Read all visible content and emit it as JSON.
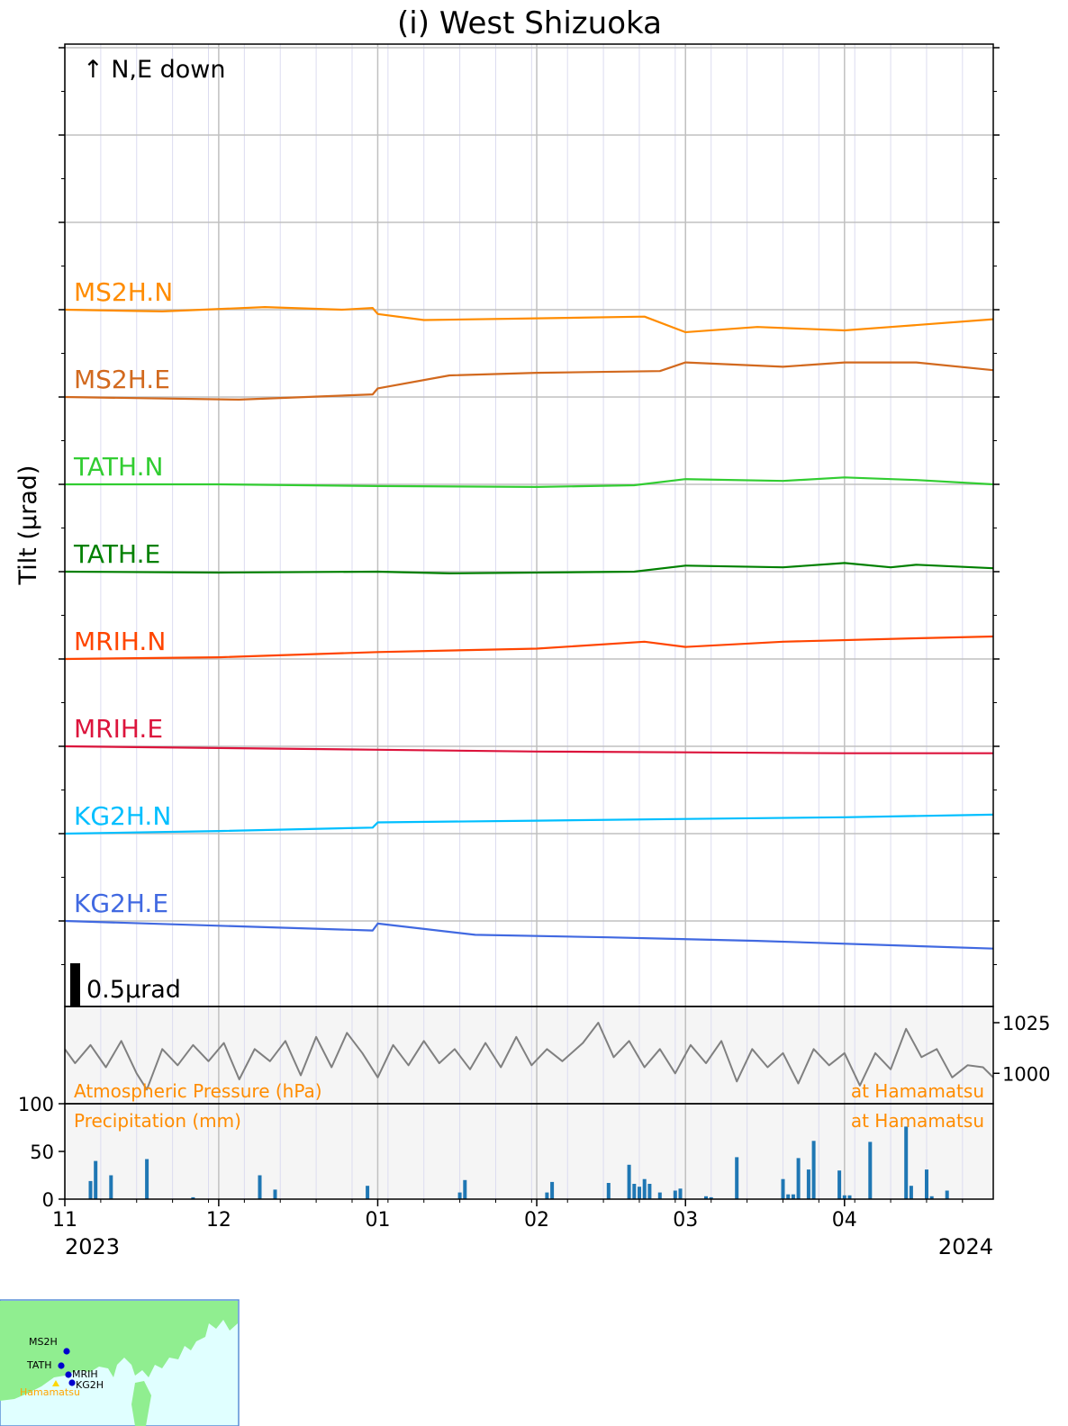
{
  "chart_data": {
    "type": "line",
    "title": "(i) West Shizuoka",
    "ylabel": "Tilt (μrad)",
    "direction_note": "↑ N,E down",
    "scale_bar_label": "0.5μrad",
    "scale_bar_value": 0.5,
    "x_axis": {
      "range": [
        "2023-11-01",
        "2024-04-30"
      ],
      "month_ticks": [
        {
          "date": "2023-11-01",
          "label": "11"
        },
        {
          "date": "2023-12-01",
          "label": "12"
        },
        {
          "date": "2024-01-01",
          "label": "01"
        },
        {
          "date": "2024-02-01",
          "label": "02"
        },
        {
          "date": "2024-03-01",
          "label": "03"
        },
        {
          "date": "2024-04-01",
          "label": "04"
        }
      ],
      "year_left": "2023",
      "year_right": "2024"
    },
    "series": [
      {
        "name": "MS2H.N",
        "color": "#ff8c00",
        "points": [
          [
            "2023-11-01",
            0
          ],
          [
            "2023-11-20",
            -0.02
          ],
          [
            "2023-12-10",
            0.03
          ],
          [
            "2023-12-25",
            0
          ],
          [
            "2023-12-31",
            0.02
          ],
          [
            "2024-01-01",
            -0.05
          ],
          [
            "2024-01-10",
            -0.12
          ],
          [
            "2024-02-01",
            -0.1
          ],
          [
            "2024-02-22",
            -0.08
          ],
          [
            "2024-03-01",
            -0.26
          ],
          [
            "2024-03-15",
            -0.2
          ],
          [
            "2024-04-01",
            -0.24
          ],
          [
            "2024-04-10",
            -0.2
          ],
          [
            "2024-04-30",
            -0.11
          ]
        ]
      },
      {
        "name": "MS2H.E",
        "color": "#d2691e",
        "points": [
          [
            "2023-11-01",
            0
          ],
          [
            "2023-12-05",
            -0.03
          ],
          [
            "2023-12-31",
            0.03
          ],
          [
            "2024-01-01",
            0.1
          ],
          [
            "2024-01-15",
            0.25
          ],
          [
            "2024-02-01",
            0.28
          ],
          [
            "2024-02-25",
            0.3
          ],
          [
            "2024-03-01",
            0.4
          ],
          [
            "2024-03-20",
            0.35
          ],
          [
            "2024-04-01",
            0.4
          ],
          [
            "2024-04-15",
            0.4
          ],
          [
            "2024-04-30",
            0.31
          ]
        ]
      },
      {
        "name": "TATH.N",
        "color": "#32cd32",
        "points": [
          [
            "2023-11-01",
            0
          ],
          [
            "2023-12-01",
            0
          ],
          [
            "2024-01-01",
            -0.02
          ],
          [
            "2024-02-01",
            -0.03
          ],
          [
            "2024-02-20",
            -0.01
          ],
          [
            "2024-03-01",
            0.06
          ],
          [
            "2024-03-20",
            0.04
          ],
          [
            "2024-04-01",
            0.08
          ],
          [
            "2024-04-15",
            0.05
          ],
          [
            "2024-04-30",
            0
          ]
        ]
      },
      {
        "name": "TATH.E",
        "color": "#008000",
        "points": [
          [
            "2023-11-01",
            0
          ],
          [
            "2023-12-01",
            -0.01
          ],
          [
            "2024-01-01",
            0
          ],
          [
            "2024-01-15",
            -0.02
          ],
          [
            "2024-02-20",
            0
          ],
          [
            "2024-03-01",
            0.07
          ],
          [
            "2024-03-20",
            0.05
          ],
          [
            "2024-04-01",
            0.1
          ],
          [
            "2024-04-10",
            0.05
          ],
          [
            "2024-04-15",
            0.08
          ],
          [
            "2024-04-30",
            0.04
          ]
        ]
      },
      {
        "name": "MRIH.N",
        "color": "#ff4500",
        "points": [
          [
            "2023-11-01",
            0
          ],
          [
            "2023-12-01",
            0.02
          ],
          [
            "2024-01-01",
            0.08
          ],
          [
            "2024-02-01",
            0.12
          ],
          [
            "2024-02-22",
            0.2
          ],
          [
            "2024-03-01",
            0.14
          ],
          [
            "2024-03-20",
            0.2
          ],
          [
            "2024-04-15",
            0.24
          ],
          [
            "2024-04-30",
            0.26
          ]
        ]
      },
      {
        "name": "MRIH.E",
        "color": "#dc143c",
        "points": [
          [
            "2023-11-01",
            0
          ],
          [
            "2023-12-01",
            -0.02
          ],
          [
            "2024-01-01",
            -0.04
          ],
          [
            "2024-02-01",
            -0.06
          ],
          [
            "2024-03-01",
            -0.07
          ],
          [
            "2024-04-01",
            -0.08
          ],
          [
            "2024-04-30",
            -0.08
          ]
        ]
      },
      {
        "name": "KG2H.N",
        "color": "#00bfff",
        "points": [
          [
            "2023-11-01",
            0
          ],
          [
            "2023-12-01",
            0.03
          ],
          [
            "2023-12-31",
            0.07
          ],
          [
            "2024-01-01",
            0.13
          ],
          [
            "2024-02-01",
            0.15
          ],
          [
            "2024-03-01",
            0.17
          ],
          [
            "2024-04-01",
            0.19
          ],
          [
            "2024-04-30",
            0.22
          ]
        ]
      },
      {
        "name": "KG2H.E",
        "color": "#4169e1",
        "points": [
          [
            "2023-11-01",
            0
          ],
          [
            "2023-12-31",
            -0.11
          ],
          [
            "2024-01-01",
            -0.03
          ],
          [
            "2024-01-20",
            -0.16
          ],
          [
            "2024-02-15",
            -0.19
          ],
          [
            "2024-03-15",
            -0.23
          ],
          [
            "2024-04-30",
            -0.32
          ]
        ]
      }
    ],
    "pressure": {
      "label": "Atmospheric Pressure (hPa)",
      "location_label": "at Hamamatsu",
      "color": "#808080",
      "ticks": [
        {
          "value": 1025,
          "label": "1025"
        },
        {
          "value": 1000,
          "label": "1000"
        }
      ],
      "ylim": [
        985,
        1033
      ],
      "points": [
        [
          "2023-11-01",
          1012
        ],
        [
          "2023-11-03",
          1005
        ],
        [
          "2023-11-06",
          1014
        ],
        [
          "2023-11-09",
          1003
        ],
        [
          "2023-11-12",
          1016
        ],
        [
          "2023-11-15",
          1000
        ],
        [
          "2023-11-17",
          992
        ],
        [
          "2023-11-20",
          1012
        ],
        [
          "2023-11-23",
          1004
        ],
        [
          "2023-11-26",
          1014
        ],
        [
          "2023-11-29",
          1006
        ],
        [
          "2023-12-02",
          1015
        ],
        [
          "2023-12-05",
          997
        ],
        [
          "2023-12-08",
          1012
        ],
        [
          "2023-12-11",
          1006
        ],
        [
          "2023-12-14",
          1016
        ],
        [
          "2023-12-17",
          999
        ],
        [
          "2023-12-20",
          1018
        ],
        [
          "2023-12-23",
          1003
        ],
        [
          "2023-12-26",
          1020
        ],
        [
          "2023-12-29",
          1010
        ],
        [
          "2024-01-01",
          998
        ],
        [
          "2024-01-04",
          1014
        ],
        [
          "2024-01-07",
          1004
        ],
        [
          "2024-01-10",
          1016
        ],
        [
          "2024-01-13",
          1005
        ],
        [
          "2024-01-16",
          1012
        ],
        [
          "2024-01-19",
          1002
        ],
        [
          "2024-01-22",
          1015
        ],
        [
          "2024-01-25",
          1003
        ],
        [
          "2024-01-28",
          1018
        ],
        [
          "2024-01-31",
          1004
        ],
        [
          "2024-02-03",
          1012
        ],
        [
          "2024-02-06",
          1006
        ],
        [
          "2024-02-10",
          1015
        ],
        [
          "2024-02-13",
          1025
        ],
        [
          "2024-02-16",
          1008
        ],
        [
          "2024-02-19",
          1016
        ],
        [
          "2024-02-22",
          1003
        ],
        [
          "2024-02-25",
          1012
        ],
        [
          "2024-02-28",
          1000
        ],
        [
          "2024-03-02",
          1014
        ],
        [
          "2024-03-05",
          1005
        ],
        [
          "2024-03-08",
          1016
        ],
        [
          "2024-03-11",
          996
        ],
        [
          "2024-03-14",
          1012
        ],
        [
          "2024-03-17",
          1003
        ],
        [
          "2024-03-20",
          1010
        ],
        [
          "2024-03-23",
          995
        ],
        [
          "2024-03-26",
          1012
        ],
        [
          "2024-03-29",
          1004
        ],
        [
          "2024-04-01",
          1010
        ],
        [
          "2024-04-04",
          994
        ],
        [
          "2024-04-07",
          1010
        ],
        [
          "2024-04-10",
          1002
        ],
        [
          "2024-04-13",
          1022
        ],
        [
          "2024-04-16",
          1008
        ],
        [
          "2024-04-19",
          1012
        ],
        [
          "2024-04-22",
          998
        ],
        [
          "2024-04-25",
          1004
        ],
        [
          "2024-04-28",
          1003
        ],
        [
          "2024-04-30",
          998
        ]
      ]
    },
    "precipitation": {
      "label": "Precipitation (mm)",
      "location_label": "at Hamamatsu",
      "color": "#1f77b4",
      "ylim": [
        0,
        100
      ],
      "ticks": [
        {
          "value": 0,
          "label": "0"
        },
        {
          "value": 50,
          "label": "50"
        },
        {
          "value": 100,
          "label": "100"
        }
      ],
      "bars": [
        [
          "2023-11-06",
          19
        ],
        [
          "2023-11-07",
          40
        ],
        [
          "2023-11-10",
          25
        ],
        [
          "2023-11-17",
          42
        ],
        [
          "2023-11-26",
          2
        ],
        [
          "2023-12-09",
          25
        ],
        [
          "2023-12-12",
          10
        ],
        [
          "2023-12-30",
          14
        ],
        [
          "2024-01-17",
          7
        ],
        [
          "2024-01-18",
          20
        ],
        [
          "2024-02-03",
          7
        ],
        [
          "2024-02-04",
          18
        ],
        [
          "2024-02-15",
          17
        ],
        [
          "2024-02-19",
          36
        ],
        [
          "2024-02-20",
          16
        ],
        [
          "2024-02-21",
          13
        ],
        [
          "2024-02-22",
          21
        ],
        [
          "2024-02-23",
          16
        ],
        [
          "2024-02-25",
          7
        ],
        [
          "2024-02-28",
          9
        ],
        [
          "2024-02-29",
          11
        ],
        [
          "2024-03-05",
          3
        ],
        [
          "2024-03-06",
          2
        ],
        [
          "2024-03-11",
          44
        ],
        [
          "2024-03-20",
          21
        ],
        [
          "2024-03-21",
          5
        ],
        [
          "2024-03-22",
          5
        ],
        [
          "2024-03-23",
          43
        ],
        [
          "2024-03-25",
          31
        ],
        [
          "2024-03-26",
          61
        ],
        [
          "2024-03-31",
          30
        ],
        [
          "2024-04-01",
          4
        ],
        [
          "2024-04-02",
          4
        ],
        [
          "2024-04-06",
          60
        ],
        [
          "2024-04-13",
          76
        ],
        [
          "2024-04-14",
          14
        ],
        [
          "2024-04-17",
          31
        ],
        [
          "2024-04-18",
          3
        ],
        [
          "2024-04-21",
          9
        ]
      ]
    }
  },
  "inset_map": {
    "land_color": "#90ee90",
    "sea_color": "#e0ffff",
    "station_labels": [
      "MS2H",
      "TATH",
      "MRIH",
      "KG2H"
    ],
    "city_label": "Hamamatsu"
  }
}
